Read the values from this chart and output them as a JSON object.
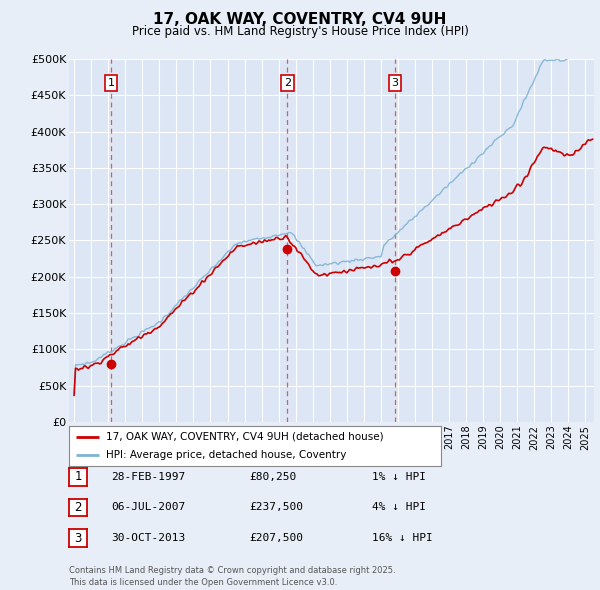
{
  "title": "17, OAK WAY, COVENTRY, CV4 9UH",
  "subtitle": "Price paid vs. HM Land Registry's House Price Index (HPI)",
  "background_color": "#e8eef8",
  "plot_bg_color": "#dce6f5",
  "grid_color": "#ffffff",
  "sale_points": [
    {
      "label": "1",
      "date_dec": 1997.163,
      "price": 80250
    },
    {
      "label": "2",
      "date_dec": 2007.508,
      "price": 237500
    },
    {
      "label": "3",
      "date_dec": 2013.831,
      "price": 207500
    }
  ],
  "legend_line1": "17, OAK WAY, COVENTRY, CV4 9UH (detached house)",
  "legend_line2": "HPI: Average price, detached house, Coventry",
  "footer": "Contains HM Land Registry data © Crown copyright and database right 2025.\nThis data is licensed under the Open Government Licence v3.0.",
  "ylim": [
    0,
    500000
  ],
  "yticks": [
    0,
    50000,
    100000,
    150000,
    200000,
    250000,
    300000,
    350000,
    400000,
    450000,
    500000
  ],
  "red_line_color": "#cc0000",
  "blue_line_color": "#7fb3d3",
  "sale_marker_color": "#cc0000",
  "vline_color": "#dd4444",
  "box_edge_color": "#cc0000",
  "table_rows": [
    {
      "num": "1",
      "date": "28-FEB-1997",
      "price": "£80,250",
      "pct": "1% ↓ HPI"
    },
    {
      "num": "2",
      "date": "06-JUL-2007",
      "price": "£237,500",
      "pct": "4% ↓ HPI"
    },
    {
      "num": "3",
      "date": "30-OCT-2013",
      "price": "£207,500",
      "pct": "16% ↓ HPI"
    }
  ]
}
